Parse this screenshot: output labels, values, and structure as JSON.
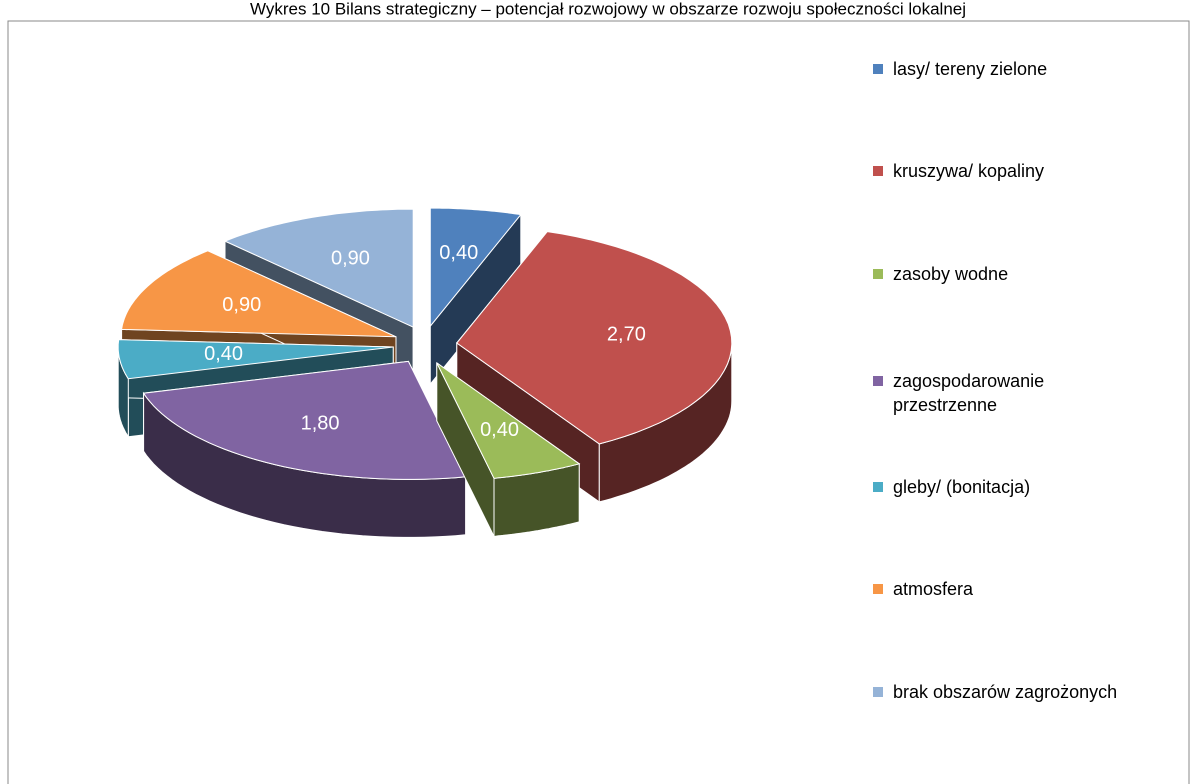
{
  "chart_data": {
    "type": "pie3d",
    "title": "Wykres 10 Bilans strategiczny – potencjał rozwojowy w obszarze rozwoju społeczności lokalnej",
    "categories": [
      "lasy/ tereny zielone",
      "kruszywa/ kopaliny",
      "zasoby wodne",
      "zagospodarowanie przestrzenne",
      "gleby/ (bonitacja)",
      "atmosfera",
      "brak obszarów zagrożonych"
    ],
    "values": [
      0.4,
      2.7,
      0.4,
      1.8,
      0.4,
      0.9,
      0.9
    ],
    "value_labels": [
      "0,40",
      "2,70",
      "0,40",
      "1,80",
      "0,40",
      "0,90",
      "0,90"
    ],
    "colors": [
      "#4f81bd",
      "#c0504d",
      "#9bbb59",
      "#8064a2",
      "#4bacc6",
      "#f79646",
      "#95b3d7"
    ],
    "legend": "right"
  }
}
